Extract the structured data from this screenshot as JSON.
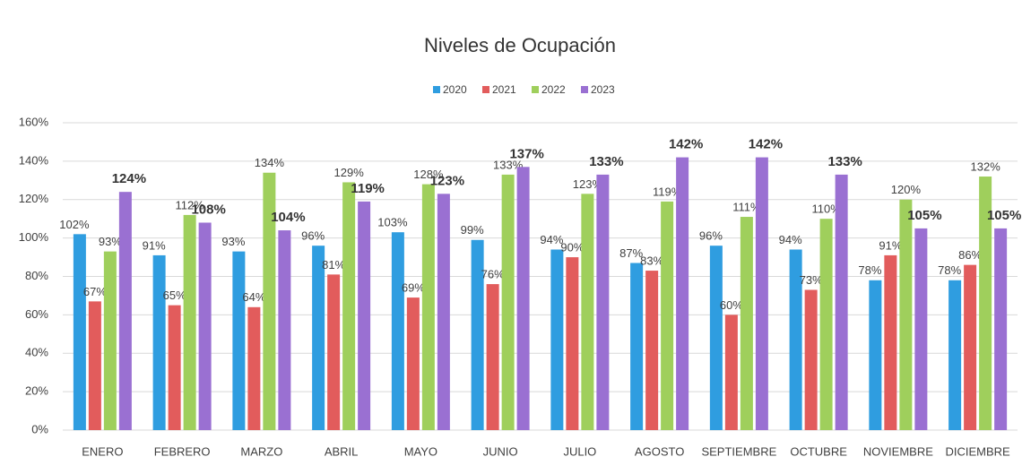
{
  "chart_data": {
    "type": "bar",
    "title": "Niveles de Ocupación",
    "categories": [
      "ENERO",
      "FEBRERO",
      "MARZO",
      "ABRIL",
      "MAYO",
      "JUNIO",
      "JULIO",
      "AGOSTO",
      "SEPTIEMBRE",
      "OCTUBRE",
      "NOVIEMBRE",
      "DICIEMBRE"
    ],
    "series": [
      {
        "name": "2020",
        "color": "#2f9de0",
        "values": [
          102,
          91,
          93,
          96,
          103,
          99,
          94,
          87,
          96,
          94,
          78,
          78
        ],
        "value_labels": [
          "102%",
          "91%",
          "93%",
          "96%",
          "103%",
          "99%",
          "94%",
          "87%",
          "96%",
          "94%",
          "78%",
          "78%"
        ]
      },
      {
        "name": "2021",
        "color": "#e25c5c",
        "values": [
          67,
          65,
          64,
          81,
          69,
          76,
          90,
          83,
          60,
          73,
          91,
          86
        ],
        "value_labels": [
          "67%",
          "65%",
          "64%",
          "81%",
          "69%",
          "76%",
          "90%",
          "83%",
          "60%",
          "73%",
          "91%",
          "86%"
        ]
      },
      {
        "name": "2022",
        "color": "#9fcf5c",
        "values": [
          93,
          112,
          134,
          129,
          128,
          133,
          123,
          119,
          111,
          110,
          120,
          132
        ],
        "value_labels": [
          "93%",
          "112%",
          "134%",
          "129%",
          "128%",
          "133%",
          "123%",
          "119%",
          "111%",
          "110%",
          "120%",
          "132%"
        ]
      },
      {
        "name": "2023",
        "color": "#9a70d2",
        "values": [
          124,
          108,
          104,
          119,
          123,
          137,
          133,
          142,
          142,
          133,
          105,
          105
        ],
        "value_labels": [
          "124%",
          "108%",
          "104%",
          "119%",
          "123%",
          "137%",
          "133%",
          "142%",
          "142%",
          "133%",
          "105%",
          "105%"
        ]
      }
    ],
    "ylim": [
      0,
      160
    ],
    "yticks": [
      {
        "value": 0,
        "label": "0%"
      },
      {
        "value": 20,
        "label": "20%"
      },
      {
        "value": 40,
        "label": "40%"
      },
      {
        "value": 60,
        "label": "60%"
      },
      {
        "value": 80,
        "label": "80%"
      },
      {
        "value": 100,
        "label": "100%"
      },
      {
        "value": 120,
        "label": "120%"
      },
      {
        "value": 140,
        "label": "140%"
      },
      {
        "value": 160,
        "label": "160%"
      }
    ],
    "grid": true,
    "legend": "top"
  }
}
